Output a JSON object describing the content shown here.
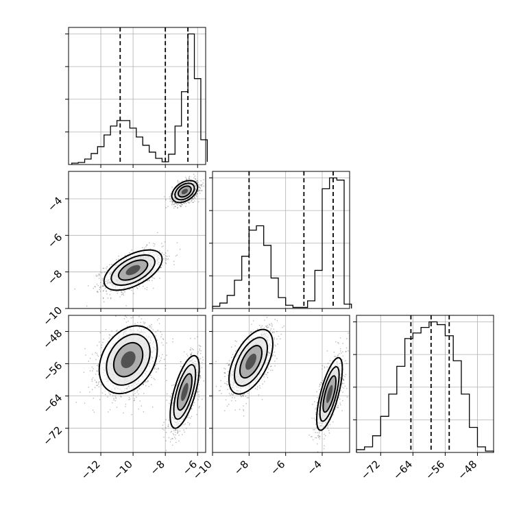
{
  "chart_data": {
    "type": "corner",
    "title": "",
    "parameters": [
      "",
      "",
      ""
    ],
    "grid": true,
    "ranges": [
      [
        -14.0,
        -5.5
      ],
      [
        -10.0,
        -2.5
      ],
      [
        -78.0,
        -44.0
      ]
    ],
    "ticks": [
      {
        "values": [
          -12,
          -10,
          -8,
          -6
        ],
        "labels": [
          "−12",
          "−10",
          "−8",
          "−6"
        ]
      },
      {
        "values": [
          -10,
          -8,
          -6,
          -4
        ],
        "labels": [
          "−10",
          "−8",
          "−6",
          "−4"
        ]
      },
      {
        "values": [
          -72,
          -64,
          -56,
          -48
        ],
        "labels": [
          "−72",
          "−64",
          "−56",
          "−48"
        ]
      }
    ],
    "histograms": [
      {
        "param": 0,
        "bin_edges": [
          -13.8,
          -13.4,
          -13.0,
          -12.6,
          -12.2,
          -11.8,
          -11.4,
          -11.0,
          -10.6,
          -10.2,
          -9.8,
          -9.4,
          -9.0,
          -8.6,
          -8.2,
          -7.8,
          -7.4,
          -7.0,
          -6.6,
          -6.2,
          -5.8,
          -5.4
        ],
        "counts": [
          2,
          3,
          8,
          16,
          26,
          43,
          56,
          64,
          64,
          53,
          40,
          28,
          18,
          9,
          4,
          15,
          56,
          106,
          190,
          125,
          36,
          4
        ],
        "quantiles": [
          -10.8,
          -8.0,
          -6.6
        ]
      },
      {
        "param": 1,
        "bin_edges": [
          -10.0,
          -9.6,
          -9.2,
          -8.8,
          -8.4,
          -8.0,
          -7.6,
          -7.2,
          -6.8,
          -6.4,
          -6.0,
          -5.6,
          -5.2,
          -4.8,
          -4.4,
          -4.0,
          -3.6,
          -3.2,
          -2.8,
          -2.4
        ],
        "counts": [
          2,
          5,
          12,
          26,
          48,
          72,
          76,
          58,
          28,
          10,
          3,
          1,
          1,
          7,
          35,
          110,
          120,
          118,
          4
        ],
        "quantiles": [
          -8.0,
          -5.0,
          -3.4
        ]
      },
      {
        "param": 2,
        "bin_edges": [
          -78,
          -76,
          -74,
          -72,
          -70,
          -68,
          -66,
          -64,
          -62,
          -60,
          -58,
          -56,
          -54,
          -52,
          -50,
          -48,
          -46,
          -44
        ],
        "counts": [
          2,
          4,
          12,
          26,
          42,
          62,
          82,
          86,
          90,
          94,
          92,
          84,
          66,
          42,
          18,
          4,
          1
        ],
        "quantiles": [
          -64.5,
          -59.5,
          -55.0
        ]
      }
    ],
    "joint": [
      {
        "x_param": 0,
        "y_param": 1,
        "modes": [
          {
            "mean": [
              -10.0,
              -7.9
            ],
            "sd": [
              0.9,
              0.55
            ],
            "rho": 0.55,
            "n": 1300
          },
          {
            "mean": [
              -6.8,
              -3.6
            ],
            "sd": [
              0.4,
              0.3
            ],
            "rho": 0.4,
            "n": 1100
          }
        ]
      },
      {
        "x_param": 0,
        "y_param": 2,
        "modes": [
          {
            "mean": [
              -10.3,
              -55.0
            ],
            "sd": [
              0.9,
              4.2
            ],
            "rho": 0.3,
            "n": 1300
          },
          {
            "mean": [
              -6.8,
              -63.0
            ],
            "sd": [
              0.45,
              4.5
            ],
            "rho": 0.65,
            "n": 1100
          }
        ]
      },
      {
        "x_param": 1,
        "y_param": 2,
        "modes": [
          {
            "mean": [
              -7.9,
              -55.5
            ],
            "sd": [
              0.6,
              4.0
            ],
            "rho": 0.55,
            "n": 1300
          },
          {
            "mean": [
              -3.6,
              -63.5
            ],
            "sd": [
              0.35,
              4.5
            ],
            "rho": 0.7,
            "n": 1100
          }
        ]
      }
    ],
    "contour_levels_sigma": [
      0.5,
      1.0,
      1.5,
      2.0
    ]
  }
}
